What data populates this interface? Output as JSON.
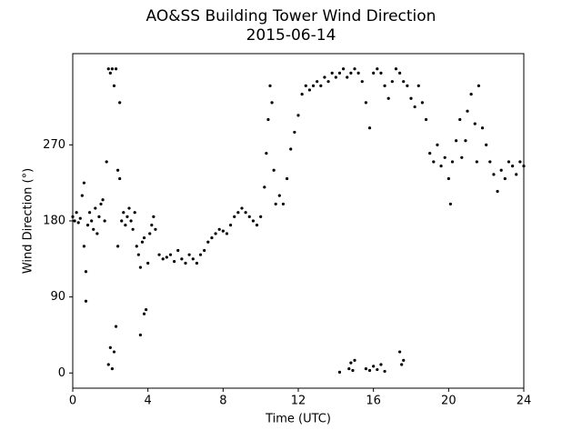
{
  "chart_data": {
    "type": "scatter",
    "title": "AO&SS Building Tower Wind Direction",
    "subtitle": "2015-06-14",
    "xlabel": "Time (UTC)",
    "ylabel": "Wind Direction (°)",
    "xlim": [
      0,
      24
    ],
    "xticks": [
      0,
      4,
      8,
      12,
      16,
      20,
      24
    ],
    "ylim": [
      -18,
      378
    ],
    "yticks": [
      0,
      90,
      180,
      270
    ],
    "color": "#000000",
    "x": [
      0.0,
      0.1,
      0.2,
      0.3,
      0.4,
      0.5,
      0.6,
      0.6,
      0.7,
      0.7,
      0.8,
      0.9,
      1.0,
      1.1,
      1.2,
      1.3,
      1.4,
      1.5,
      1.6,
      1.7,
      1.8,
      1.9,
      1.9,
      2.0,
      2.0,
      2.1,
      2.1,
      2.2,
      2.2,
      2.3,
      2.3,
      2.4,
      2.4,
      2.5,
      2.5,
      2.6,
      2.7,
      2.8,
      2.9,
      3.0,
      3.1,
      3.2,
      3.3,
      3.4,
      3.5,
      3.6,
      3.6,
      3.7,
      3.8,
      3.8,
      3.9,
      4.0,
      4.1,
      4.2,
      4.3,
      4.4,
      4.6,
      4.8,
      5.0,
      5.2,
      5.4,
      5.6,
      5.8,
      6.0,
      6.2,
      6.4,
      6.6,
      6.8,
      7.0,
      7.2,
      7.4,
      7.6,
      7.8,
      8.0,
      8.2,
      8.4,
      8.6,
      8.8,
      9.0,
      9.2,
      9.4,
      9.6,
      9.8,
      10.0,
      10.2,
      10.3,
      10.4,
      10.5,
      10.6,
      10.7,
      10.8,
      11.0,
      11.2,
      11.4,
      11.6,
      11.8,
      12.0,
      12.2,
      12.4,
      12.6,
      12.8,
      13.0,
      13.2,
      13.4,
      13.6,
      13.8,
      14.0,
      14.2,
      14.4,
      14.6,
      14.8,
      15.0,
      15.2,
      15.4,
      15.6,
      15.8,
      16.0,
      16.2,
      16.4,
      16.6,
      16.8,
      17.0,
      17.2,
      17.4,
      17.6,
      17.8,
      18.0,
      18.2,
      18.4,
      18.6,
      18.8,
      19.0,
      19.2,
      19.4,
      19.6,
      19.8,
      20.0,
      20.1,
      20.2,
      20.4,
      20.6,
      20.7,
      20.9,
      21.0,
      21.2,
      21.4,
      21.5,
      21.6,
      21.8,
      22.0,
      22.2,
      22.4,
      22.6,
      22.8,
      23.0,
      23.2,
      23.4,
      23.6,
      23.8,
      24.0,
      14.2,
      14.7,
      14.8,
      14.9,
      15.0,
      15.6,
      15.8,
      16.0,
      16.2,
      16.4,
      16.6,
      17.4,
      17.5,
      17.6
    ],
    "y": [
      185,
      180,
      190,
      178,
      183,
      210,
      225,
      150,
      120,
      85,
      175,
      190,
      180,
      170,
      195,
      165,
      185,
      200,
      205,
      180,
      250,
      360,
      10,
      355,
      30,
      5,
      360,
      340,
      25,
      55,
      360,
      150,
      240,
      320,
      230,
      180,
      190,
      175,
      185,
      195,
      180,
      170,
      190,
      150,
      140,
      125,
      45,
      155,
      70,
      160,
      75,
      130,
      165,
      175,
      185,
      170,
      140,
      135,
      137,
      140,
      132,
      145,
      135,
      130,
      140,
      135,
      130,
      140,
      145,
      155,
      160,
      165,
      170,
      168,
      165,
      175,
      185,
      190,
      195,
      190,
      185,
      180,
      175,
      185,
      220,
      260,
      300,
      340,
      320,
      240,
      200,
      210,
      200,
      230,
      265,
      285,
      305,
      330,
      340,
      335,
      340,
      345,
      340,
      350,
      345,
      355,
      350,
      355,
      360,
      350,
      355,
      360,
      355,
      345,
      320,
      290,
      355,
      360,
      355,
      340,
      325,
      345,
      360,
      355,
      345,
      340,
      325,
      315,
      340,
      320,
      300,
      260,
      250,
      270,
      245,
      255,
      230,
      200,
      250,
      275,
      300,
      255,
      275,
      310,
      330,
      295,
      250,
      340,
      290,
      270,
      250,
      235,
      215,
      240,
      230,
      250,
      245,
      235,
      250,
      245,
      1,
      5,
      12,
      3,
      15,
      5,
      3,
      8,
      4,
      10,
      2,
      25,
      10,
      15
    ]
  }
}
